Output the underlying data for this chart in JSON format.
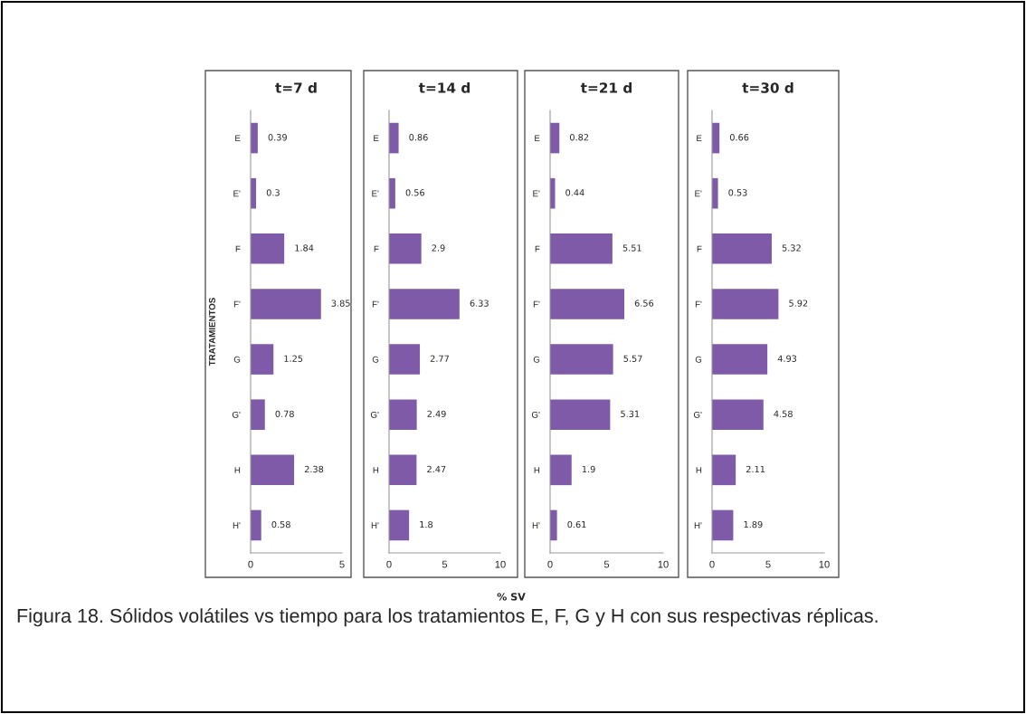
{
  "chart_data": [
    {
      "type": "bar",
      "orientation": "horizontal",
      "title": "t=7 d",
      "ylabel": "TRATAMIENTOS",
      "categories": [
        "E",
        "E'",
        "F",
        "F'",
        "G",
        "G'",
        "H",
        "H'"
      ],
      "values": [
        0.39,
        0.3,
        1.84,
        3.85,
        1.25,
        0.78,
        2.38,
        0.58
      ],
      "color": "#7f5aa8",
      "xlim": [
        0,
        5
      ],
      "xticks": [
        0,
        5
      ],
      "data_labels": true
    },
    {
      "type": "bar",
      "orientation": "horizontal",
      "title": "t=14 d",
      "xlabel": "% SV",
      "categories": [
        "E",
        "E'",
        "F",
        "F'",
        "G",
        "G'",
        "H",
        "H'"
      ],
      "values": [
        0.86,
        0.56,
        2.9,
        6.33,
        2.77,
        2.49,
        2.47,
        1.8
      ],
      "color": "#7f5aa8",
      "xlim": [
        0,
        10
      ],
      "xticks": [
        0,
        5,
        10
      ],
      "data_labels": true
    },
    {
      "type": "bar",
      "orientation": "horizontal",
      "title": "t=21 d",
      "categories": [
        "E",
        "E'",
        "F",
        "F'",
        "G",
        "G'",
        "H",
        "H'"
      ],
      "values": [
        0.82,
        0.44,
        5.51,
        6.56,
        5.57,
        5.31,
        1.9,
        0.61
      ],
      "color": "#7f5aa8",
      "xlim": [
        0,
        10
      ],
      "xticks": [
        0,
        5,
        10
      ],
      "data_labels": true
    },
    {
      "type": "bar",
      "orientation": "horizontal",
      "title": "t=30 d",
      "categories": [
        "E",
        "E'",
        "F",
        "F'",
        "G",
        "G'",
        "H",
        "H'"
      ],
      "values": [
        0.66,
        0.53,
        5.32,
        5.92,
        4.93,
        4.58,
        2.11,
        1.89
      ],
      "color": "#7f5aa8",
      "xlim": [
        0,
        10
      ],
      "xticks": [
        0,
        5,
        10
      ],
      "data_labels": true,
      "annotations": [
        "Figura 18. Sólidos volátiles vs tiempo para los tratamientos E, F, G y H con sus respectivas réplicas."
      ]
    }
  ]
}
